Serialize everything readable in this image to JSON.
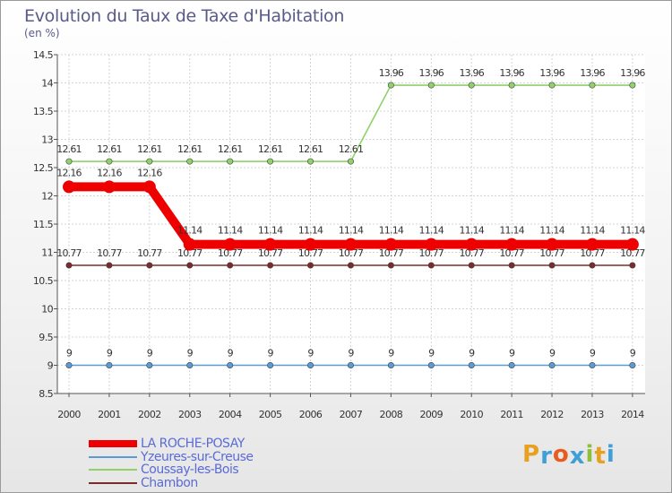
{
  "header": {
    "title": "Evolution du Taux de Taxe d'Habitation",
    "subtitle": "(en %)"
  },
  "chart_data": {
    "type": "line",
    "title": "Evolution du Taux de Taxe d'Habitation",
    "ylabel": "(en %)",
    "xlabel": "",
    "ylim": [
      8.5,
      14.5
    ],
    "yticks": [
      "8.5",
      "9",
      "9.5",
      "10",
      "10.5",
      "11",
      "11.5",
      "12",
      "12.5",
      "13",
      "13.5",
      "14",
      "14.5"
    ],
    "x": [
      "2000",
      "2001",
      "2002",
      "2003",
      "2004",
      "2005",
      "2006",
      "2007",
      "2008",
      "2009",
      "2010",
      "2011",
      "2012",
      "2013",
      "2014"
    ],
    "series": [
      {
        "name": "Coussay-les-Bois",
        "color": "#8fd16a",
        "values": [
          12.61,
          12.61,
          12.61,
          12.61,
          12.61,
          12.61,
          12.61,
          12.61,
          13.96,
          13.96,
          13.96,
          13.96,
          13.96,
          13.96,
          13.96
        ],
        "labels": [
          "12.61",
          "12.61",
          "12.61",
          "12.61",
          "12.61",
          "12.61",
          "12.61",
          "12.61",
          "13.96",
          "13.96",
          "13.96",
          "13.96",
          "13.96",
          "13.96",
          "13.96"
        ]
      },
      {
        "name": "Chambon",
        "color": "#7b2b2b",
        "values": [
          10.77,
          10.77,
          10.77,
          10.77,
          10.77,
          10.77,
          10.77,
          10.77,
          10.77,
          10.77,
          10.77,
          10.77,
          10.77,
          10.77,
          10.77
        ],
        "labels": [
          "10.77",
          "10.77",
          "10.77",
          "10.77",
          "10.77",
          "10.77",
          "10.77",
          "10.77",
          "10.77",
          "10.77",
          "10.77",
          "10.77",
          "10.77",
          "10.77",
          "10.77"
        ]
      },
      {
        "name": "Yzeures-sur-Creuse",
        "color": "#5b9bd5",
        "values": [
          9,
          9,
          9,
          9,
          9,
          9,
          9,
          9,
          9,
          9,
          9,
          9,
          9,
          9,
          9
        ],
        "labels": [
          "9",
          "9",
          "9",
          "9",
          "9",
          "9",
          "9",
          "9",
          "9",
          "9",
          "9",
          "9",
          "9",
          "9",
          "9"
        ]
      },
      {
        "name": "LA ROCHE-POSAY",
        "color": "#ee0000",
        "values": [
          12.16,
          12.16,
          12.16,
          11.14,
          11.14,
          11.14,
          11.14,
          11.14,
          11.14,
          11.14,
          11.14,
          11.14,
          11.14,
          11.14,
          11.14
        ],
        "labels": [
          "12.16",
          "12.16",
          "12.16",
          "11.14",
          "11.14",
          "11.14",
          "11.14",
          "11.14",
          "11.14",
          "11.14",
          "11.14",
          "11.14",
          "11.14",
          "11.14",
          "11.14"
        ]
      }
    ],
    "legend": [
      "LA ROCHE-POSAY",
      "Yzeures-sur-Creuse",
      "Coussay-les-Bois",
      "Chambon"
    ]
  },
  "logo": {
    "letters": [
      "P",
      "r",
      "o",
      "x",
      "i",
      "t",
      "i"
    ],
    "colors": [
      "#e8a020",
      "#3fa0d8",
      "#e85c20",
      "#3fa0d8",
      "#8fbf3a",
      "#e8a020",
      "#3fa0d8"
    ]
  }
}
